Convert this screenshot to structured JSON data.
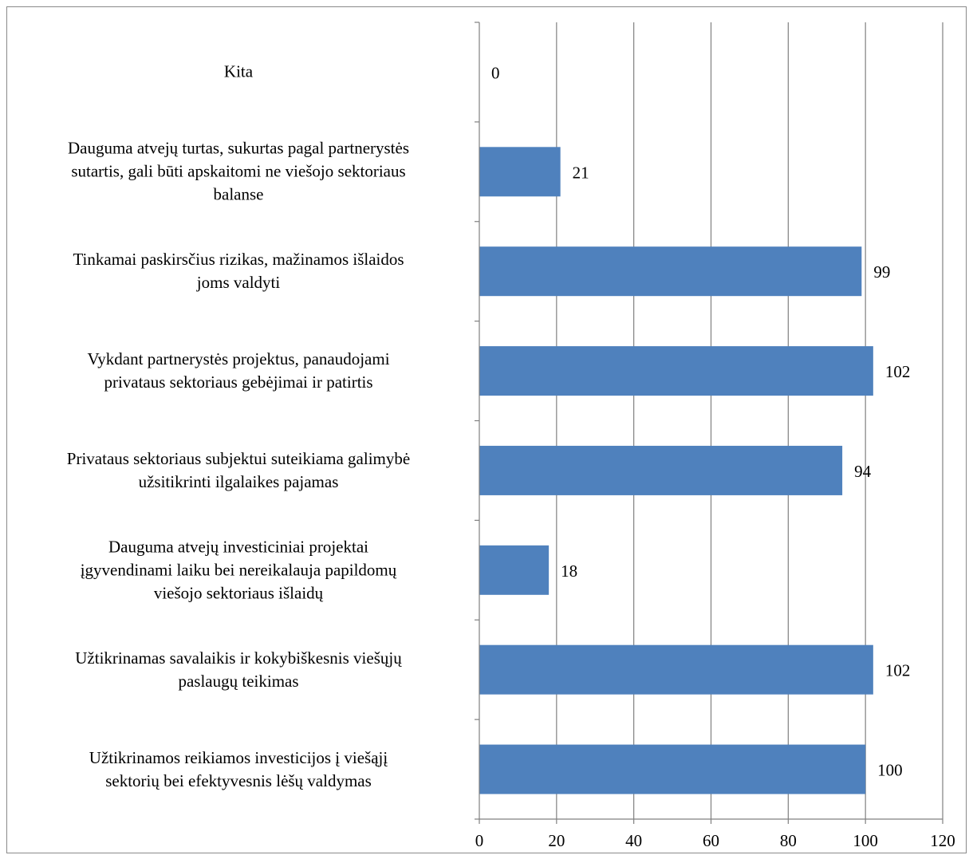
{
  "chart_data": {
    "type": "bar",
    "orientation": "horizontal",
    "categories": [
      "Kita",
      "Dauguma atvejų turtas, sukurtas pagal partnerystės sutartis, gali būti apskaitomi ne viešojo sektoriaus balanse",
      "Tinkamai paskirsčius rizikas, mažinamos išlaidos joms valdyti",
      "Vykdant partnerystės projektus, panaudojami privataus sektoriaus gebėjimai ir patirtis",
      "Privataus sektoriaus subjektui suteikiama galimybė užsitikrinti ilgalaikes pajamas",
      "Dauguma atvejų investiciniai projektai įgyvendinami laiku bei nereikalauja papildomų viešojo sektoriaus išlaidų",
      "Užtikrinamas savalaikis ir kokybiškesnis viešųjų paslaugų teikimas",
      "Užtikrinamos reikiamos investicijos į viešąjį sektorių bei efektyvesnis lėšų valdymas"
    ],
    "category_lines": [
      [
        "Kita"
      ],
      [
        "Dauguma atvejų turtas, sukurtas pagal partnerystės",
        "sutartis, gali būti apskaitomi ne viešojo sektoriaus",
        "balanse"
      ],
      [
        "Tinkamai paskirsčius rizikas, mažinamos išlaidos",
        "joms valdyti"
      ],
      [
        "Vykdant partnerystės projektus, panaudojami",
        "privataus sektoriaus gebėjimai ir patirtis"
      ],
      [
        "Privataus sektoriaus subjektui suteikiama galimybė",
        "užsitikrinti ilgalaikes pajamas"
      ],
      [
        "Dauguma atvejų investiciniai projektai",
        "įgyvendinami laiku bei nereikalauja papildomų",
        "viešojo sektoriaus išlaidų"
      ],
      [
        "Užtikrinamas savalaikis ir kokybiškesnis viešųjų",
        "paslaugų teikimas"
      ],
      [
        "Užtikrinamos reikiamos investicijos į viešąjį",
        "sektorių bei efektyvesnis lėšų valdymas"
      ]
    ],
    "values": [
      0,
      21,
      99,
      102,
      94,
      18,
      102,
      100
    ],
    "data_labels": [
      "0",
      "21",
      "99",
      "102",
      "94",
      "18",
      "102",
      "100"
    ],
    "xlim": [
      0,
      120
    ],
    "x_ticks": [
      "0",
      "20",
      "40",
      "60",
      "80",
      "100",
      "120"
    ],
    "x_tick_values": [
      0,
      20,
      40,
      60,
      80,
      100,
      120
    ],
    "title": "",
    "xlabel": "",
    "ylabel": "",
    "grid": "vertical",
    "legend": "none",
    "bar_color": "#4F81BD",
    "grid_color": "#808080",
    "axis_color": "#808080"
  }
}
